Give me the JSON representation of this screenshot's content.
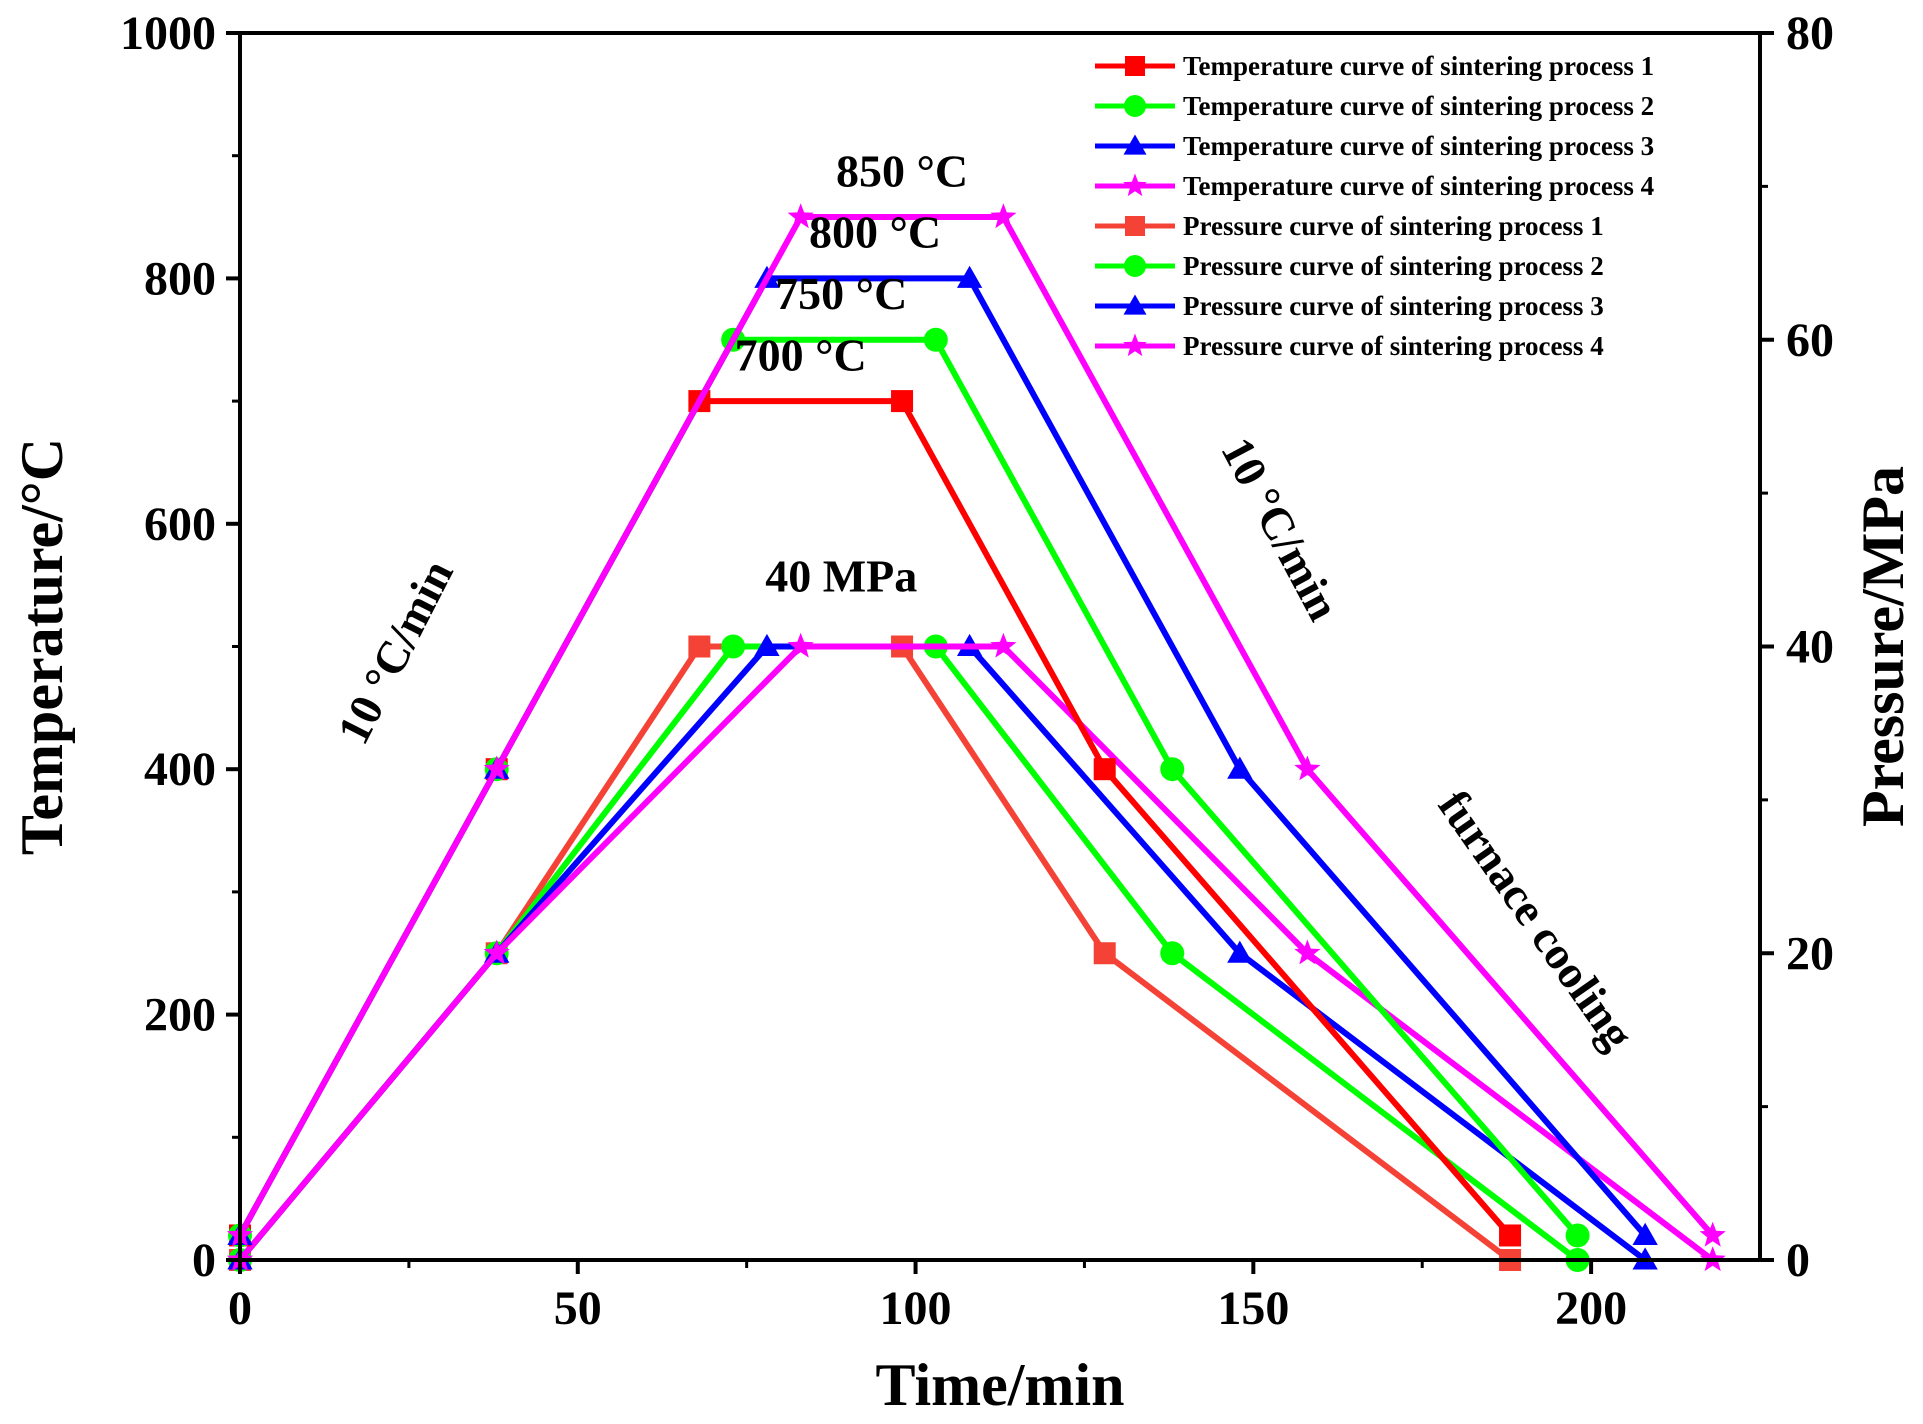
{
  "chart_data": {
    "type": "line",
    "xlabel": "Time/min",
    "ylabel": "Temperature/°C",
    "y2label": "Pressure/MPa",
    "xlim": [
      0,
      225
    ],
    "ylim": [
      0,
      1000
    ],
    "y2lim": [
      0,
      80
    ],
    "xticks": [
      0,
      50,
      100,
      150,
      200
    ],
    "yticks": [
      0,
      200,
      400,
      600,
      800,
      1000
    ],
    "y2ticks": [
      0,
      20,
      40,
      60,
      80
    ],
    "grid": false,
    "legend_position": "top-right",
    "series": [
      {
        "name": "Temperature curve of sintering process 1",
        "axis": "left",
        "color": "#ff0000",
        "marker": "square",
        "x": [
          0,
          38,
          68,
          98,
          128,
          188
        ],
        "y": [
          20,
          400,
          700,
          700,
          400,
          20
        ]
      },
      {
        "name": "Temperature curve of sintering process 2",
        "axis": "left",
        "color": "#00ff00",
        "marker": "circle",
        "x": [
          0,
          38,
          73,
          103,
          138,
          198
        ],
        "y": [
          20,
          400,
          750,
          750,
          400,
          20
        ]
      },
      {
        "name": "Temperature curve of sintering process 3",
        "axis": "left",
        "color": "#0000ff",
        "marker": "triangle",
        "x": [
          0,
          38,
          78,
          108,
          148,
          208
        ],
        "y": [
          20,
          400,
          800,
          800,
          400,
          20
        ]
      },
      {
        "name": "Temperature curve of sintering process 4",
        "axis": "left",
        "color": "#ff00ff",
        "marker": "star",
        "x": [
          0,
          38,
          83,
          113,
          158,
          218
        ],
        "y": [
          20,
          400,
          850,
          850,
          400,
          20
        ]
      },
      {
        "name": "Pressure curve of sintering process 1",
        "axis": "right",
        "color": "#f44336",
        "marker": "square",
        "x": [
          0,
          38,
          68,
          98,
          128,
          188
        ],
        "y": [
          0,
          20,
          40,
          40,
          20,
          0
        ]
      },
      {
        "name": "Pressure curve of sintering process 2",
        "axis": "right",
        "color": "#00ff00",
        "marker": "circle",
        "x": [
          0,
          38,
          73,
          103,
          138,
          198
        ],
        "y": [
          0,
          20,
          40,
          40,
          20,
          0
        ]
      },
      {
        "name": "Pressure curve of sintering process 3",
        "axis": "right",
        "color": "#0000ff",
        "marker": "triangle",
        "x": [
          0,
          38,
          78,
          108,
          148,
          208
        ],
        "y": [
          0,
          20,
          40,
          40,
          20,
          0
        ]
      },
      {
        "name": "Pressure curve of sintering process 4",
        "axis": "right",
        "color": "#ff00ff",
        "marker": "star",
        "x": [
          0,
          38,
          83,
          113,
          158,
          218
        ],
        "y": [
          0,
          20,
          40,
          40,
          20,
          0
        ]
      }
    ],
    "annotations": [
      {
        "text": "850 °C",
        "x": 98,
        "y": 875
      },
      {
        "text": "800 °C",
        "x": 94,
        "y": 825
      },
      {
        "text": "750 °C",
        "x": 89,
        "y": 775
      },
      {
        "text": "700 °C",
        "x": 83,
        "y": 725
      },
      {
        "text": "40 MPa",
        "x": 89,
        "y": 545
      },
      {
        "text": "10 °C/min",
        "x": 25,
        "y": 490,
        "rotate": -63
      },
      {
        "text": "10 °C/min",
        "x": 152,
        "y": 590,
        "rotate": 62
      },
      {
        "text": "furnace cooling",
        "x": 190,
        "y": 270,
        "rotate": 55
      }
    ]
  }
}
